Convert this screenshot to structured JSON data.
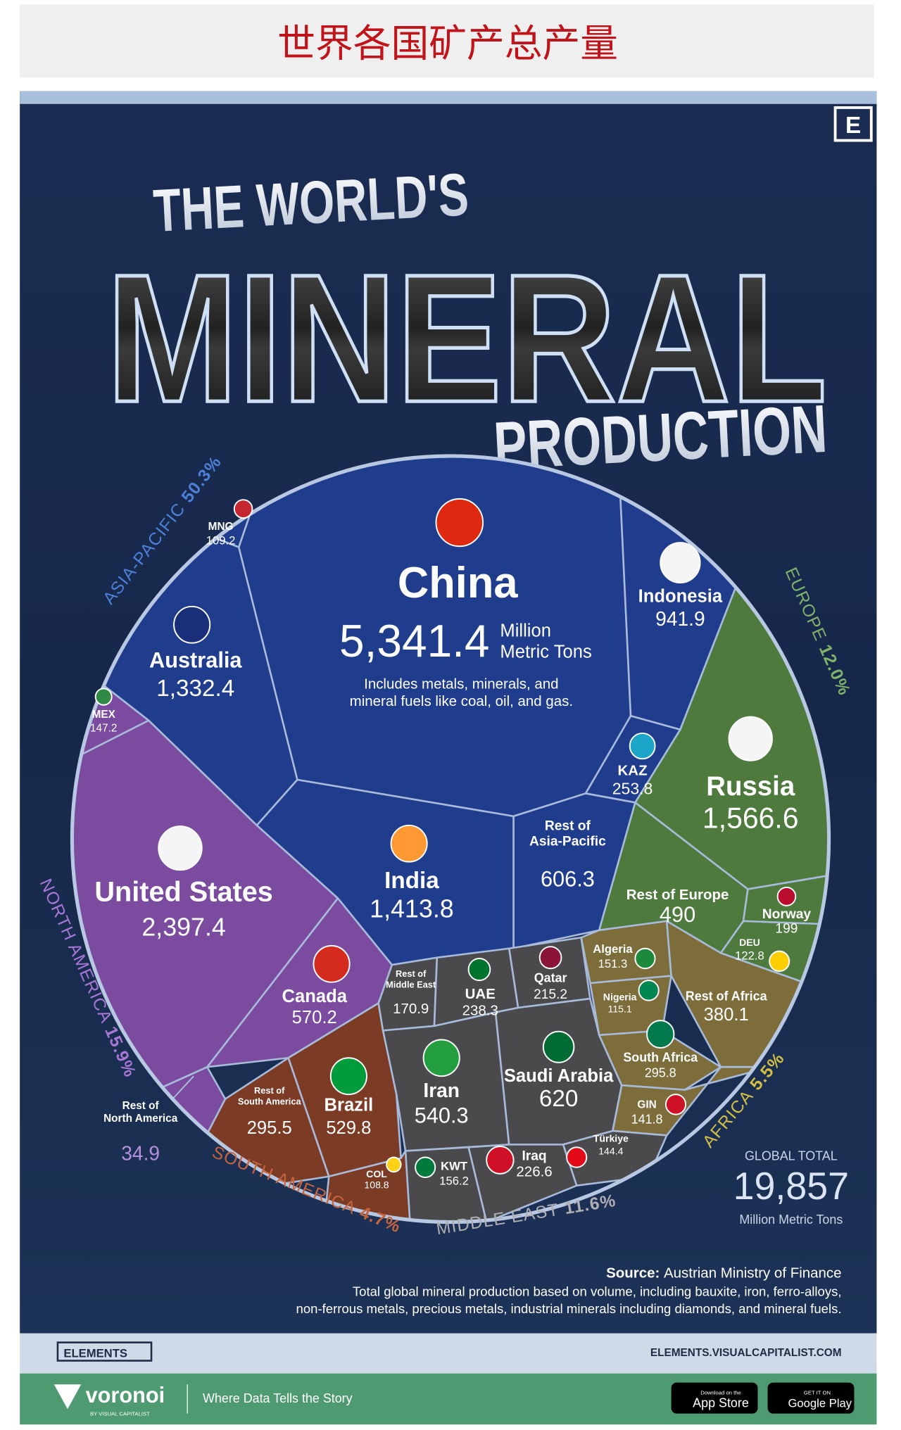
{
  "header": {
    "title": "世界各国矿产总产量"
  },
  "poster": {
    "badge": "E",
    "title": [
      "THE WORLD'S",
      "MINERAL",
      "PRODUCTION"
    ]
  },
  "regions": [
    {
      "name": "ASIA-PACIFIC",
      "share": "50.3%"
    },
    {
      "name": "EUROPE",
      "share": "12.0%"
    },
    {
      "name": "NORTH AMERICA",
      "share": "15.9%"
    },
    {
      "name": "SOUTH AMERICA",
      "share": "4.7%"
    },
    {
      "name": "MIDDLE EAST",
      "share": "11.6%"
    },
    {
      "name": "AFRICA",
      "share": "5.5%"
    }
  ],
  "cells": [
    {
      "name": [
        "China"
      ],
      "value": "5,341.4"
    },
    {
      "name": [
        "Indonesia"
      ],
      "value": "941.9"
    },
    {
      "name": [
        "MNG"
      ],
      "value": "109.2"
    },
    {
      "name": [
        "Australia"
      ],
      "value": "1,332.4"
    },
    {
      "name": [
        "MEX"
      ],
      "value": "147.2"
    },
    {
      "name": [
        "KAZ"
      ],
      "value": "253.8"
    },
    {
      "name": [
        "Russia"
      ],
      "value": "1,566.6"
    },
    {
      "name": [
        "India"
      ],
      "value": "1,413.8"
    },
    {
      "name": [
        "Rest of",
        "Asia-Pacific"
      ],
      "value": "606.3"
    },
    {
      "name": [
        "United States"
      ],
      "value": "2,397.4"
    },
    {
      "name": [
        "Rest of Europe"
      ],
      "value": "490"
    },
    {
      "name": [
        "Norway"
      ],
      "value": "199"
    },
    {
      "name": [
        "DEU"
      ],
      "value": "122.8"
    },
    {
      "name": [
        "Algeria"
      ],
      "value": "151.3"
    },
    {
      "name": [
        "Qatar"
      ],
      "value": "215.2"
    },
    {
      "name": [
        "Rest of",
        "Middle East"
      ],
      "value": "170.9"
    },
    {
      "name": [
        "UAE"
      ],
      "value": "238.3"
    },
    {
      "name": [
        "Canada"
      ],
      "value": "570.2"
    },
    {
      "name": [
        "Nigeria"
      ],
      "value": "115.1"
    },
    {
      "name": [
        "Rest of Africa"
      ],
      "value": "380.1"
    },
    {
      "name": [
        "Iran"
      ],
      "value": "540.3"
    },
    {
      "name": [
        "Saudi Arabia"
      ],
      "value": "620"
    },
    {
      "name": [
        "South Africa"
      ],
      "value": "295.8"
    },
    {
      "name": [
        "Brazil"
      ],
      "value": "529.8"
    },
    {
      "name": [
        "Rest of",
        "South America"
      ],
      "value": "295.5"
    },
    {
      "name": [
        "Rest of",
        "North America"
      ],
      "value": "34.9"
    },
    {
      "name": [
        "GIN"
      ],
      "value": "141.8"
    },
    {
      "name": [
        "Türkiye"
      ],
      "value": "144.4"
    },
    {
      "name": [
        "Iraq"
      ],
      "value": "226.6"
    },
    {
      "name": [
        "KWT"
      ],
      "value": "156.2"
    },
    {
      "name": [
        "COL"
      ],
      "value": "108.8"
    }
  ],
  "china_unit": [
    "Million",
    "Metric Tons"
  ],
  "china_note": [
    "Includes metals, minerals, and",
    "mineral fuels like coal, oil, and gas."
  ],
  "total": {
    "label": "GLOBAL TOTAL",
    "value": "19,857",
    "unit": "Million Metric Tons"
  },
  "source": {
    "label": "Source:",
    "text": "Austrian Ministry of Finance",
    "notes": [
      "Total global mineral production based on volume, including bauxite, iron, ferro-alloys,",
      "non-ferrous metals, precious metals, industrial minerals including diamonds, and mineral fuels."
    ]
  },
  "footer": {
    "elements": "ELEMENTS",
    "url": "ELEMENTS.VISUALCAPITALIST.COM",
    "brand": "voronoi",
    "brand_sub": "BY VISUAL CAPITALIST",
    "tagline": "Where Data Tells the Story",
    "appstore_top": "Download on the",
    "appstore": "App Store",
    "gplay_top": "GET IT ON",
    "gplay": "Google Play"
  }
}
